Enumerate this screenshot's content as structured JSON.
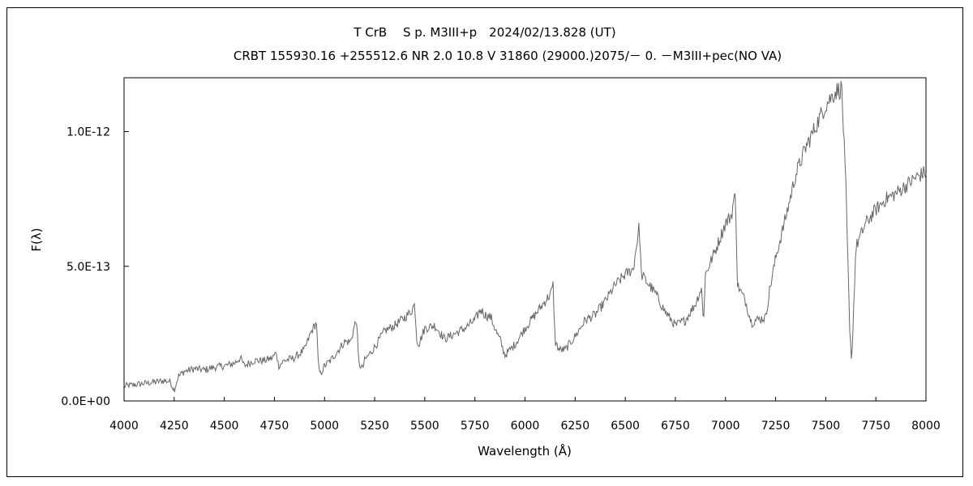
{
  "chart_data": {
    "type": "line",
    "title": "T CrB　 S p. M3III+p　2024/02/13.828 (UT)",
    "subtitle": "CRBT 155930.16 +255512.6 NR 2.0 10.8 V 31860 (29000.)2075/－ 0. －M3III+pec(NO VA)",
    "xlabel": "Wavelength (Å)",
    "ylabel": "F(λ)",
    "xlim": [
      4000,
      8000
    ],
    "ylim": [
      0,
      1.2e-12
    ],
    "x_ticks": [
      4000,
      4250,
      4500,
      4750,
      5000,
      5250,
      5500,
      5750,
      6000,
      6250,
      6500,
      6750,
      7000,
      7250,
      7500,
      7750,
      8000
    ],
    "x_tick_labels": [
      "4000",
      "4250",
      "4500",
      "4750",
      "5000",
      "5250",
      "5500",
      "5750",
      "6000",
      "6250",
      "6500",
      "6750",
      "7000",
      "7250",
      "7500",
      "7750",
      "8000"
    ],
    "y_ticks": [
      0,
      5e-13,
      1e-12
    ],
    "y_tick_labels": [
      "0.0E+00",
      "5.0E-13",
      "1.0E-12"
    ],
    "grid": false,
    "legend": "none",
    "line_color": "#666666",
    "series": [
      {
        "x": [
          4000,
          4050,
          4100,
          4150,
          4200,
          4230,
          4250,
          4270,
          4300,
          4330,
          4350,
          4400,
          4450,
          4500,
          4550,
          4580,
          4600,
          4620,
          4650,
          4700,
          4740,
          4760,
          4770,
          4800,
          4850,
          4900,
          4930,
          4950,
          4960,
          4970,
          4980,
          5000,
          5030,
          5070,
          5100,
          5130,
          5150,
          5160,
          5170,
          5190,
          5200,
          5250,
          5300,
          5350,
          5400,
          5430,
          5450,
          5460,
          5470,
          5500,
          5550,
          5600,
          5650,
          5700,
          5750,
          5780,
          5800,
          5830,
          5860,
          5880,
          5890,
          5900,
          5950,
          6000,
          6050,
          6100,
          6130,
          6140,
          6150,
          6170,
          6200,
          6250,
          6300,
          6350,
          6400,
          6450,
          6500,
          6520,
          6540,
          6560,
          6570,
          6580,
          6600,
          6650,
          6700,
          6750,
          6800,
          6850,
          6880,
          6890,
          6900,
          6950,
          7000,
          7030,
          7040,
          7050,
          7060,
          7100,
          7130,
          7150,
          7200,
          7220,
          7250,
          7300,
          7350,
          7400,
          7450,
          7500,
          7550,
          7580,
          7600,
          7620,
          7630,
          7650,
          7700,
          7750,
          7800,
          7850,
          7900,
          7950,
          8000
        ],
        "y": [
          5.5e-14,
          6e-14,
          6.5e-14,
          7e-14,
          7.5e-14,
          7.2e-14,
          4e-14,
          9e-14,
          1.1e-13,
          1.15e-13,
          1.2e-13,
          1.15e-13,
          1.25e-13,
          1.3e-13,
          1.4e-13,
          1.6e-13,
          1.3e-13,
          1.4e-13,
          1.5e-13,
          1.5e-13,
          1.6e-13,
          1.8e-13,
          1.3e-13,
          1.5e-13,
          1.6e-13,
          1.9e-13,
          2.5e-13,
          2.8e-13,
          2.9e-13,
          1.2e-13,
          1e-13,
          1.3e-13,
          1.5e-13,
          1.9e-13,
          2.2e-13,
          2.2e-13,
          2.8e-13,
          3e-13,
          1.4e-13,
          1.2e-13,
          1.5e-13,
          2e-13,
          2.6e-13,
          2.8e-13,
          3.1e-13,
          3.3e-13,
          3.6e-13,
          2.3e-13,
          2.1e-13,
          2.7e-13,
          2.8e-13,
          2.3e-13,
          2.5e-13,
          2.7e-13,
          3e-13,
          3.4e-13,
          3.2e-13,
          3.1e-13,
          2.5e-13,
          2.2e-13,
          1.9e-13,
          1.7e-13,
          2.1e-13,
          2.7e-13,
          3.2e-13,
          3.7e-13,
          4e-13,
          4.3e-13,
          2.2e-13,
          1.9e-13,
          1.9e-13,
          2.4e-13,
          3e-13,
          3.2e-13,
          3.7e-13,
          4.3e-13,
          4.7e-13,
          4.8e-13,
          4.9e-13,
          6e-13,
          6.5e-13,
          4.7e-13,
          4.5e-13,
          4e-13,
          3.3e-13,
          2.8e-13,
          3e-13,
          3.6e-13,
          4.2e-13,
          2.9e-13,
          4.7e-13,
          5.6e-13,
          6.6e-13,
          6.9e-13,
          7.4e-13,
          7.6e-13,
          4.3e-13,
          3.7e-13,
          2.9e-13,
          3e-13,
          3.1e-13,
          4.1e-13,
          5.3e-13,
          6.8e-13,
          8.4e-13,
          9.4e-13,
          1.02e-12,
          1.1e-12,
          1.15e-12,
          1.16e-12,
          8e-13,
          2.5e-13,
          1.5e-13,
          5.7e-13,
          6.6e-13,
          7.1e-13,
          7.5e-13,
          7.7e-13,
          8e-13,
          8.3e-13,
          8.5e-13
        ]
      }
    ]
  }
}
